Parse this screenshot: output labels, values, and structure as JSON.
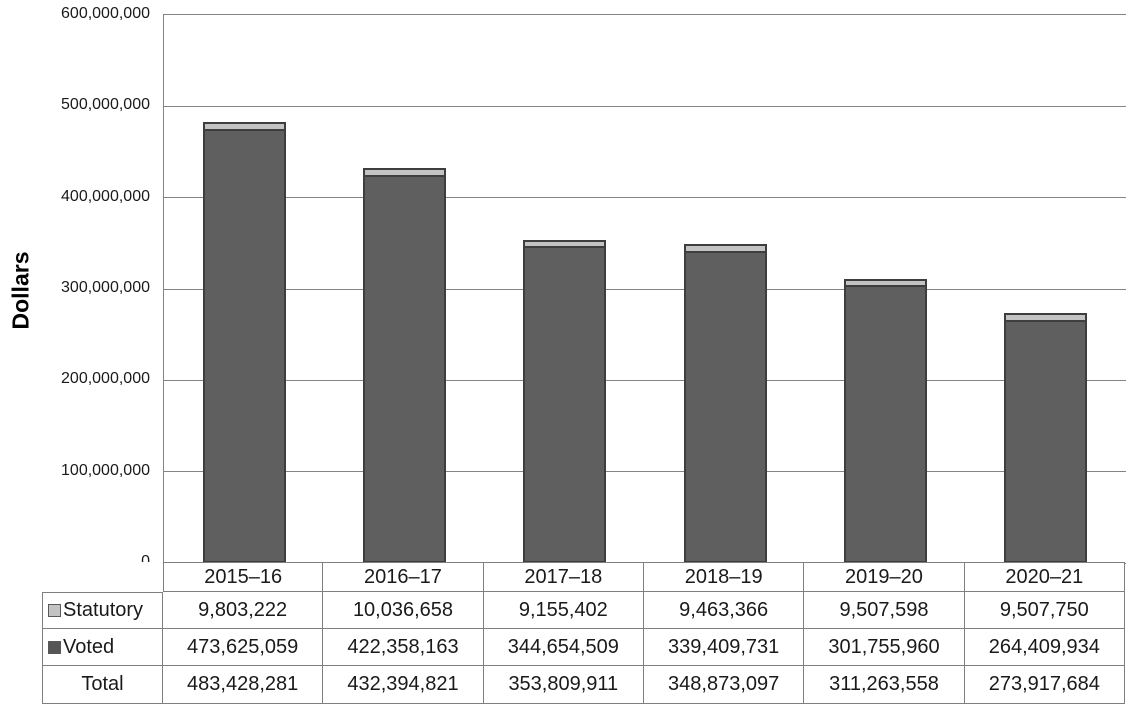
{
  "figure": {
    "y_axis_title": "Dollars"
  },
  "chart_data": {
    "type": "bar",
    "stacked": true,
    "title": "",
    "xlabel": "",
    "ylabel": "Dollars",
    "ylim": [
      0,
      600000000
    ],
    "ytick_interval": 100000000,
    "y_tick_labels": [
      "600,000,000",
      "500,000,000",
      "400,000,000",
      "300,000,000",
      "200,000,000",
      "100,000,000",
      "0"
    ],
    "grid": true,
    "legend_position": "table-row-labels",
    "categories": [
      "2015–16",
      "2016–17",
      "2017–18",
      "2018–19",
      "2019–20",
      "2020–21"
    ],
    "series": [
      {
        "name": "Voted",
        "color": "#5f5f5f",
        "values": [
          473625059,
          422358163,
          344654509,
          339409731,
          301755960,
          264409934
        ]
      },
      {
        "name": "Statutory",
        "color": "#c3c3c3",
        "values": [
          9803222,
          10036658,
          9155402,
          9463366,
          9507598,
          9507750
        ]
      }
    ],
    "totals": [
      483428281,
      432394821,
      353809911,
      348873097,
      311263558,
      273917684
    ]
  },
  "table": {
    "years": [
      "2015–16",
      "2016–17",
      "2017–18",
      "2018–19",
      "2019–20",
      "2020–21"
    ],
    "rows": [
      {
        "label": "Statutory",
        "values": [
          "9,803,222",
          "10,036,658",
          "9,155,402",
          "9,463,366",
          "9,507,598",
          "9,507,750"
        ]
      },
      {
        "label": "Voted",
        "values": [
          "473,625,059",
          "422,358,163",
          "344,654,509",
          "339,409,731",
          "301,755,960",
          "264,409,934"
        ]
      },
      {
        "label": "Total",
        "values": [
          "483,428,281",
          "432,394,821",
          "353,809,911",
          "348,873,097",
          "311,263,558",
          "273,917,684"
        ]
      }
    ]
  },
  "colors": {
    "statutory_fill": "#c3c3c3",
    "voted_fill": "#5f5f5f",
    "bar_border": "#3e3e3e",
    "grid_line": "#848484",
    "table_border": "#7f7f7f",
    "text": "#1a1a1a"
  }
}
